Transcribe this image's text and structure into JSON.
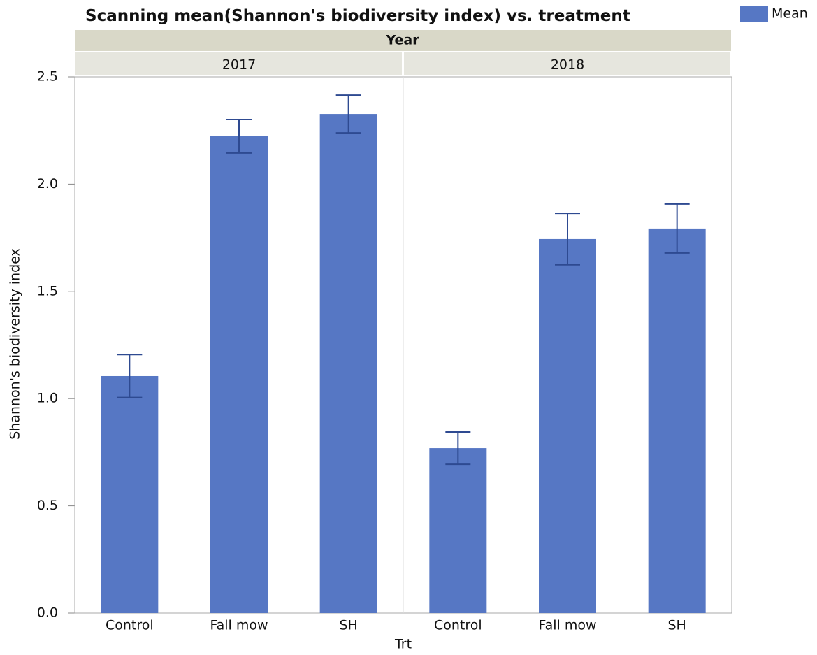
{
  "chart_data": {
    "type": "bar",
    "title": "Scanning mean(Shannon's biodiversity index) vs. treatment",
    "facet_title": "Year",
    "x_label": "Trt",
    "y_label": "Shannon's biodiversity index",
    "series_name": "Mean",
    "color": "#5677c4",
    "error_color": "#2e4a91",
    "panels": [
      {
        "label": "2017",
        "categories": [
          "Control",
          "Fall mow",
          "SH"
        ],
        "values": [
          1.105,
          2.223,
          2.327
        ],
        "errors": [
          0.1,
          0.078,
          0.088
        ]
      },
      {
        "label": "2018",
        "categories": [
          "Control",
          "Fall mow",
          "SH"
        ],
        "values": [
          0.769,
          1.744,
          1.793
        ],
        "errors": [
          0.075,
          0.12,
          0.114
        ]
      }
    ],
    "ylim": [
      0,
      2.5
    ],
    "yticks": [
      {
        "value": 0,
        "label": "0.0"
      },
      0.5,
      {
        "value": 1,
        "label": "1.0"
      },
      1.5,
      {
        "value": 2,
        "label": "2.0"
      },
      2.5
    ]
  }
}
